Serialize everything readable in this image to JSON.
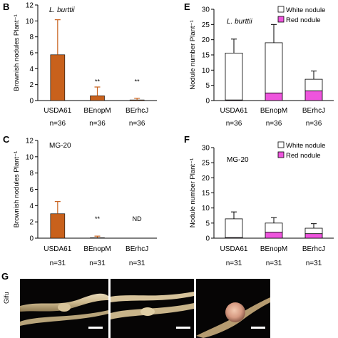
{
  "panels": [
    {
      "id": "B",
      "type": "bar",
      "ylabel": "Brownish nodules Plant⁻¹",
      "strain_label": "L. burttii",
      "ylim": [
        0,
        12
      ],
      "yticks": [
        0,
        2,
        4,
        6,
        8,
        10,
        12
      ],
      "categories": [
        "USDA61",
        "BEnopM",
        "BErhcJ"
      ],
      "values": [
        5.75,
        0.6,
        0.08
      ],
      "errors": [
        4.4,
        1.1,
        0.2
      ],
      "annotations": [
        "",
        "**",
        "**"
      ],
      "n_labels": [
        "n=36",
        "n=36",
        "n=36"
      ],
      "bar_color": "#c8611c"
    },
    {
      "id": "C",
      "type": "bar",
      "ylabel": "Brownish nodules Plant⁻¹",
      "strain_label": "MG-20",
      "ylim": [
        0,
        12
      ],
      "yticks": [
        0,
        2,
        4,
        6,
        8,
        10,
        12
      ],
      "categories": [
        "USDA61",
        "BEnopM",
        "BErhcJ"
      ],
      "values": [
        3.0,
        0.05,
        0
      ],
      "errors": [
        1.5,
        0.2,
        0
      ],
      "annotations": [
        "",
        "**",
        "ND"
      ],
      "n_labels": [
        "n=31",
        "n=31",
        "n=31"
      ],
      "bar_color": "#c8611c"
    },
    {
      "id": "E",
      "type": "stacked-bar",
      "ylabel": "Nodule number Plant⁻¹",
      "strain_label": "L. burttii",
      "ylim": [
        0,
        30
      ],
      "yticks": [
        0,
        5,
        10,
        15,
        20,
        25,
        30
      ],
      "categories": [
        "USDA61",
        "BEnopM",
        "BErhcJ"
      ],
      "series": [
        {
          "name": "Red nodule",
          "values": [
            0.2,
            2.5,
            3.2
          ],
          "errors": [
            0,
            1.8,
            1.8
          ],
          "color": "#ee55dd"
        },
        {
          "name": "White nodule",
          "values": [
            15.4,
            16.5,
            3.8
          ],
          "errors": [
            4.6,
            6.0,
            2.7
          ],
          "color": "#ffffff"
        }
      ],
      "n_labels": [
        "n=36",
        "n=36",
        "n=36"
      ]
    },
    {
      "id": "F",
      "type": "stacked-bar",
      "ylabel": "Nodule number Plant⁻¹",
      "strain_label": "MG-20",
      "ylim": [
        0,
        30
      ],
      "yticks": [
        0,
        5,
        10,
        15,
        20,
        25,
        30
      ],
      "categories": [
        "USDA61",
        "BEnopM",
        "BErhcJ"
      ],
      "series": [
        {
          "name": "Red nodule",
          "values": [
            0.2,
            2.0,
            1.5
          ],
          "errors": [
            0,
            0.9,
            0.6
          ],
          "color": "#ee55dd"
        },
        {
          "name": "White nodule",
          "values": [
            6.2,
            3.0,
            1.8
          ],
          "errors": [
            2.3,
            1.8,
            1.5
          ],
          "color": "#ffffff"
        }
      ],
      "n_labels": [
        "n=31",
        "n=31",
        "n=31"
      ]
    }
  ],
  "photo_panel": {
    "id": "G",
    "side_label": "Gifu"
  }
}
